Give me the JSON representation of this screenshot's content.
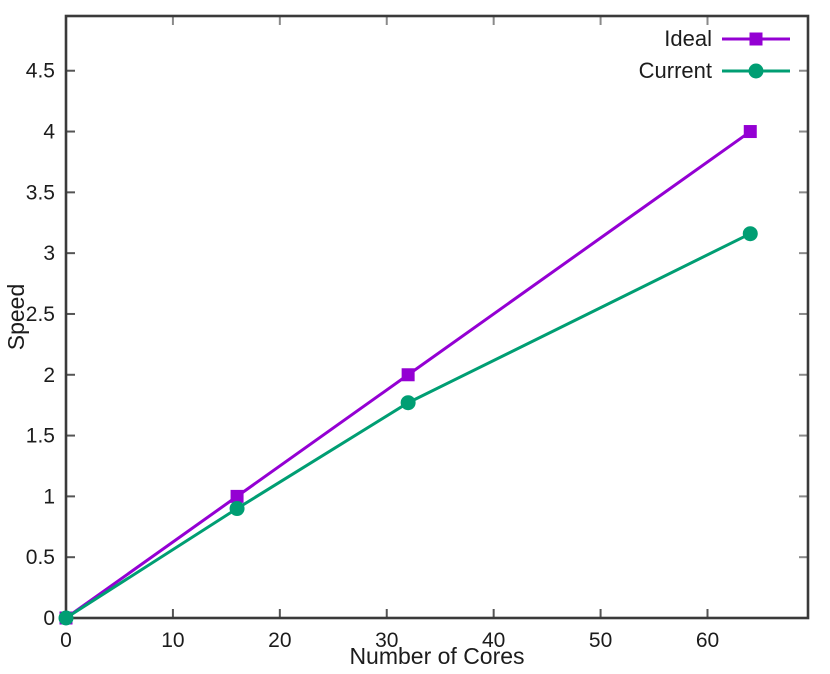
{
  "figure": {
    "background": "#ffffff",
    "border_color": "#3a3a3a",
    "tick_color": "#555555",
    "mirror_tick_color": "#8a8a8a",
    "text_color": "#1c1c1c"
  },
  "chart_data": {
    "type": "line",
    "title": "",
    "xlabel": "Number of Cores",
    "ylabel": "Speed",
    "x": [
      0,
      16,
      32,
      64
    ],
    "series": [
      {
        "name": "Ideal",
        "color": "#9400d3",
        "marker": "square",
        "values": [
          0,
          1,
          2,
          4
        ]
      },
      {
        "name": "Current",
        "color": "#009e73",
        "marker": "circle",
        "values": [
          0,
          0.9,
          1.77,
          3.16
        ]
      }
    ],
    "xlim": [
      0,
      69.4
    ],
    "ylim": [
      0,
      4.95
    ],
    "xticks": [
      0,
      10,
      20,
      30,
      40,
      50,
      60
    ],
    "yticks": [
      0,
      0.5,
      1,
      1.5,
      2,
      2.5,
      3,
      3.5,
      4,
      4.5
    ],
    "grid": false,
    "legend_position": "top-right",
    "legend_entries": [
      "Ideal",
      "Current"
    ]
  }
}
